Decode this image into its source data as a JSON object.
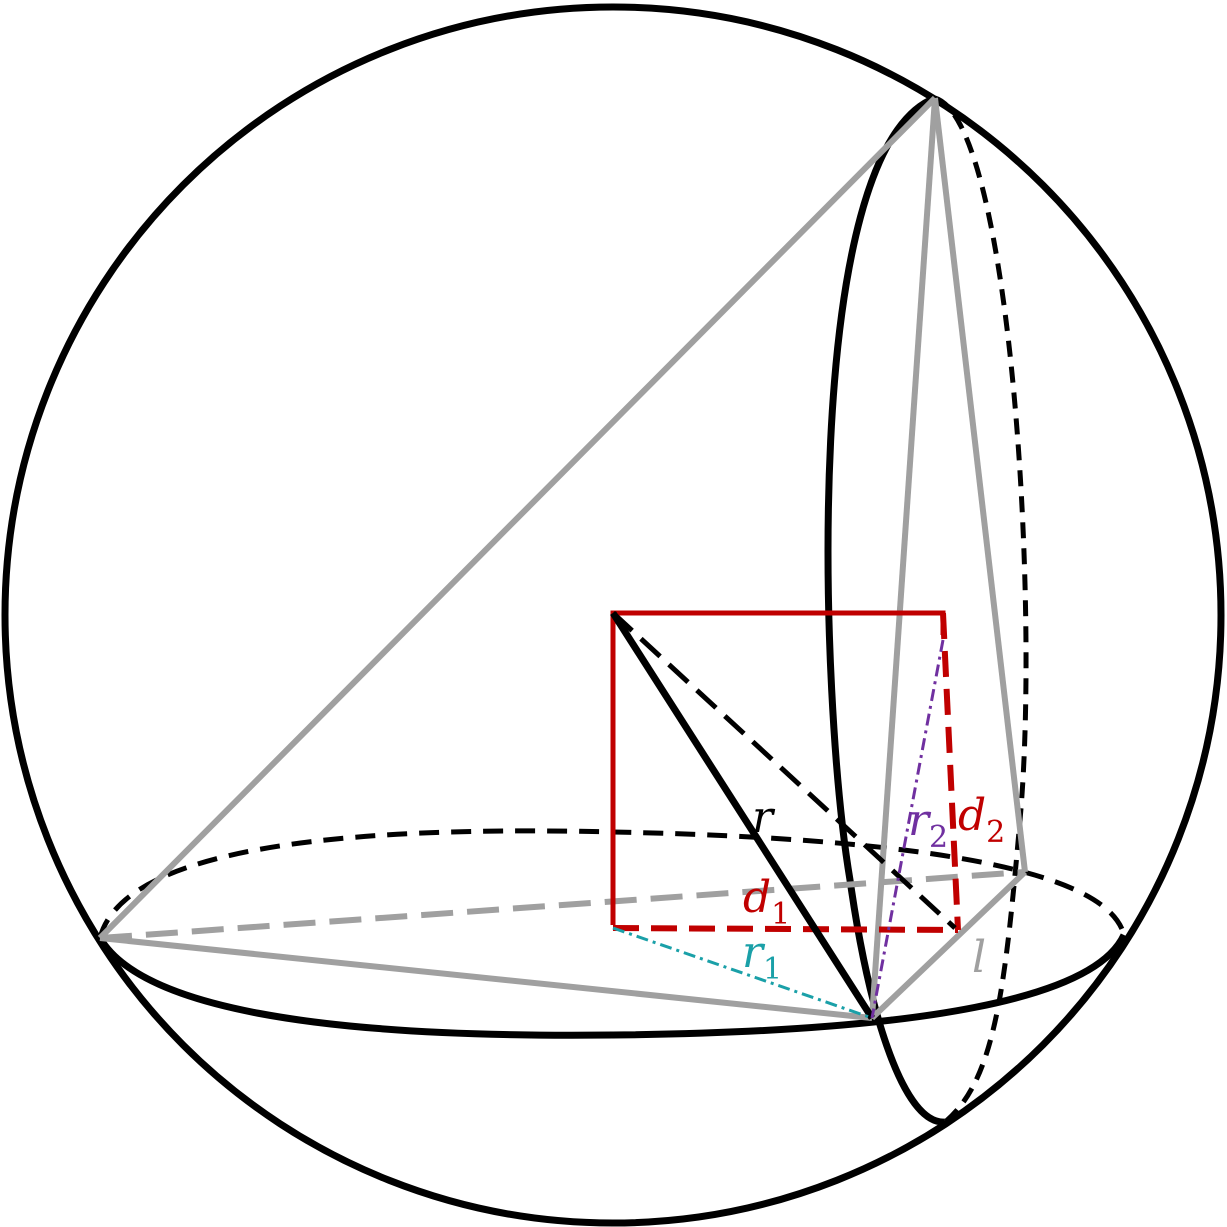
{
  "labels": {
    "r": {
      "base": "r",
      "sub": ""
    },
    "r1": {
      "base": "r",
      "sub": "1"
    },
    "r2": {
      "base": "r",
      "sub": "2"
    },
    "d1": {
      "base": "d",
      "sub": "1"
    },
    "d2": {
      "base": "d",
      "sub": "2"
    },
    "l": {
      "base": "l",
      "sub": ""
    }
  },
  "colors": {
    "outline": "#000000",
    "edge_gray": "#a0a0a0",
    "red": "#c00000",
    "teal": "#1aa0a8",
    "purple": "#7030a0"
  }
}
